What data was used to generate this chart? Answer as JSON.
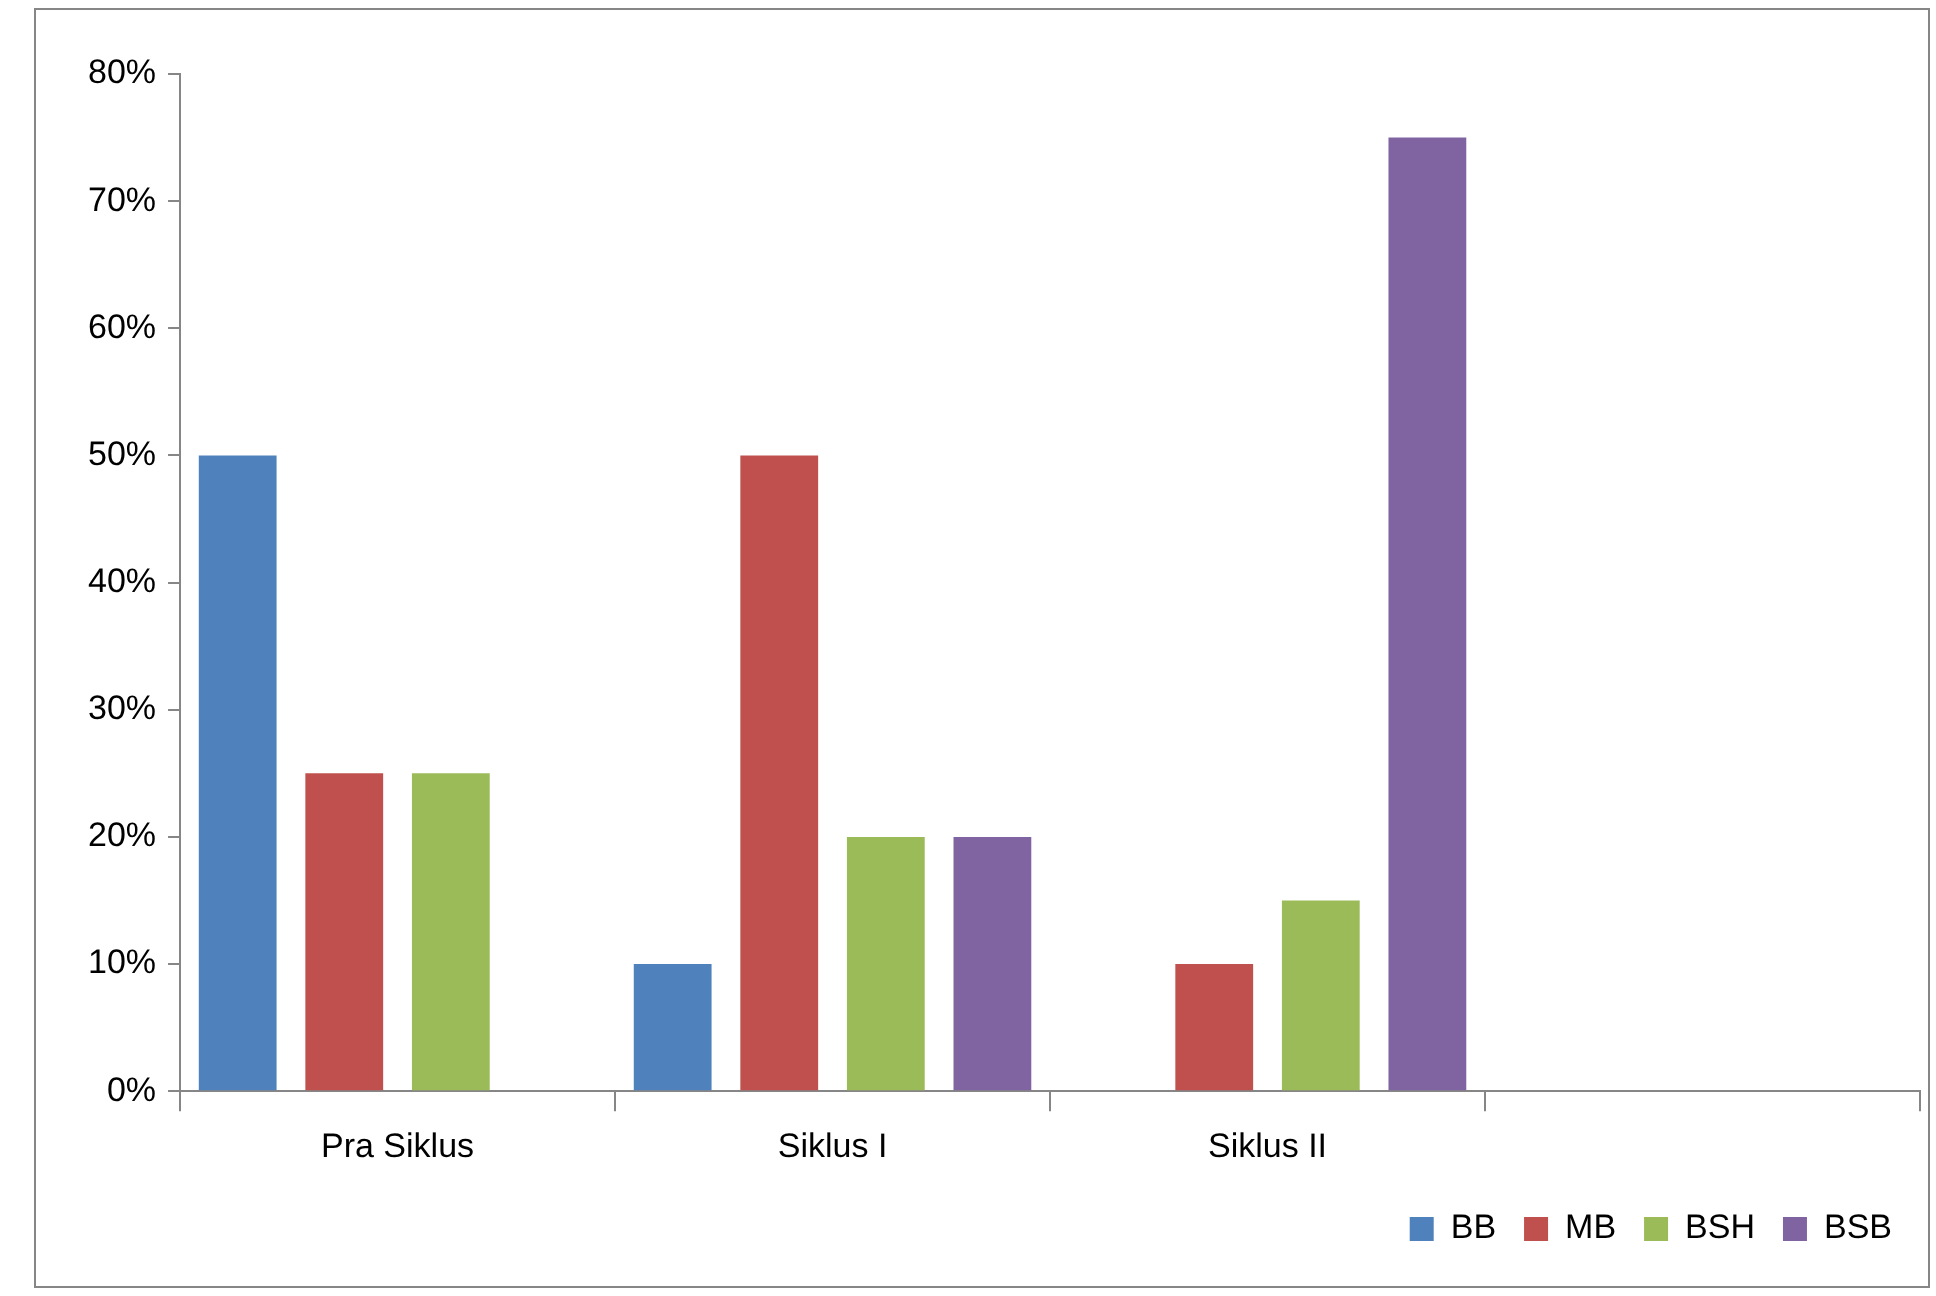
{
  "chart_data": {
    "type": "bar",
    "categories": [
      "Pra Siklus",
      "Siklus I",
      "Siklus II",
      null
    ],
    "series": [
      {
        "name": "BB",
        "color": "#4f81bd",
        "values": [
          50,
          10,
          null,
          null
        ]
      },
      {
        "name": "MB",
        "color": "#c0504d",
        "values": [
          25,
          50,
          10,
          null
        ]
      },
      {
        "name": "BSH",
        "color": "#9bbb59",
        "values": [
          25,
          20,
          15,
          null
        ]
      },
      {
        "name": "BSB",
        "color": "#8064a2",
        "values": [
          null,
          20,
          75,
          null
        ]
      }
    ],
    "ylim": [
      0,
      80
    ],
    "yticks": [
      {
        "value": 0,
        "label": "0%"
      },
      {
        "value": 10,
        "label": "10%"
      },
      {
        "value": 20,
        "label": "20%"
      },
      {
        "value": 30,
        "label": "30%"
      },
      {
        "value": 40,
        "label": "40%"
      },
      {
        "value": 50,
        "label": "50%"
      },
      {
        "value": 60,
        "label": "60%"
      },
      {
        "value": 70,
        "label": "70%"
      },
      {
        "value": 80,
        "label": "80%"
      }
    ],
    "grid": false,
    "legend": "bottom right"
  }
}
